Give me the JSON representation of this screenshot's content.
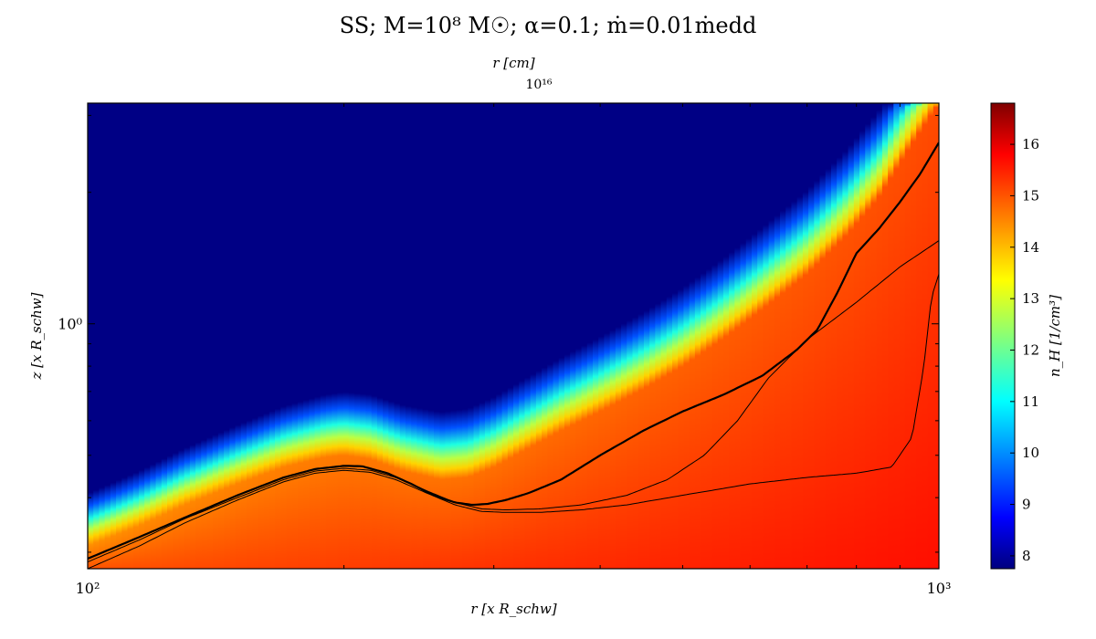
{
  "chart_data": {
    "type": "heatmap",
    "title": "SS; M=10⁸ M☉; α=0.1; ṁ=0.01ṁedd",
    "top_axis_label": "r [cm]",
    "top_axis_tick": "10¹⁶",
    "xlabel": "r [x R_schw]",
    "ylabel": "z [x R_schw]",
    "x_scale": "log",
    "y_scale": "log",
    "xlim": [
      100,
      1000
    ],
    "ylim": [
      0.275,
      3.2
    ],
    "x_ticks": [
      {
        "value": 100,
        "label": "10²"
      },
      {
        "value": 1000,
        "label": "10³"
      }
    ],
    "y_ticks": [
      {
        "value": 1,
        "label": "10⁰"
      }
    ],
    "colorbar": {
      "label": "n_H [1/cm³]",
      "range": [
        7.75,
        16.8
      ],
      "ticks": [
        8,
        9,
        10,
        11,
        12,
        13,
        14,
        15,
        16
      ],
      "colormap": "jet"
    },
    "density_field": {
      "background_value": 7.8,
      "disk_value_inner": 14.8,
      "disk_value_outer": 15.4,
      "surface_profile": {
        "r": [
          100,
          115,
          130,
          150,
          170,
          190,
          200,
          215,
          235,
          260,
          280,
          300,
          330,
          360,
          400,
          450,
          500,
          560,
          620,
          700,
          780,
          850,
          920,
          1000
        ],
        "z": [
          0.31,
          0.345,
          0.385,
          0.43,
          0.47,
          0.495,
          0.5,
          0.49,
          0.46,
          0.44,
          0.445,
          0.47,
          0.52,
          0.57,
          0.63,
          0.71,
          0.8,
          0.93,
          1.08,
          1.3,
          1.6,
          1.95,
          2.5,
          3.2
        ]
      }
    },
    "contours": [
      {
        "style": "thick",
        "r": [
          100,
          115,
          130,
          150,
          170,
          185,
          200,
          210,
          225,
          240,
          255,
          270,
          283,
          295,
          310,
          330,
          360,
          400,
          450,
          500,
          560,
          620,
          680,
          720,
          760,
          800,
          850,
          900,
          950,
          1000
        ],
        "z": [
          0.29,
          0.325,
          0.36,
          0.405,
          0.445,
          0.465,
          0.473,
          0.472,
          0.455,
          0.43,
          0.405,
          0.39,
          0.385,
          0.387,
          0.395,
          0.41,
          0.44,
          0.5,
          0.57,
          0.63,
          0.69,
          0.76,
          0.87,
          0.97,
          1.18,
          1.45,
          1.65,
          1.9,
          2.2,
          2.6
        ]
      },
      {
        "style": "thin",
        "r": [
          100,
          115,
          130,
          150,
          170,
          185,
          200,
          215,
          230,
          250,
          270,
          290,
          310,
          340,
          380,
          430,
          480,
          530,
          580,
          630,
          700,
          800,
          900,
          1000
        ],
        "z": [
          0.285,
          0.32,
          0.358,
          0.4,
          0.44,
          0.46,
          0.467,
          0.462,
          0.445,
          0.415,
          0.39,
          0.377,
          0.375,
          0.377,
          0.385,
          0.405,
          0.44,
          0.5,
          0.6,
          0.75,
          0.92,
          1.12,
          1.35,
          1.55
        ]
      },
      {
        "style": "thin",
        "r": [
          100,
          115,
          130,
          150,
          170,
          185,
          200,
          215,
          230,
          250,
          270,
          290,
          310,
          340,
          380,
          430,
          500,
          600,
          700,
          800,
          880,
          930,
          960,
          980,
          1000
        ],
        "z": [
          0.275,
          0.31,
          0.35,
          0.395,
          0.435,
          0.455,
          0.462,
          0.457,
          0.44,
          0.41,
          0.385,
          0.372,
          0.37,
          0.37,
          0.375,
          0.385,
          0.405,
          0.43,
          0.445,
          0.455,
          0.47,
          0.55,
          0.8,
          1.15,
          1.3
        ]
      }
    ]
  }
}
